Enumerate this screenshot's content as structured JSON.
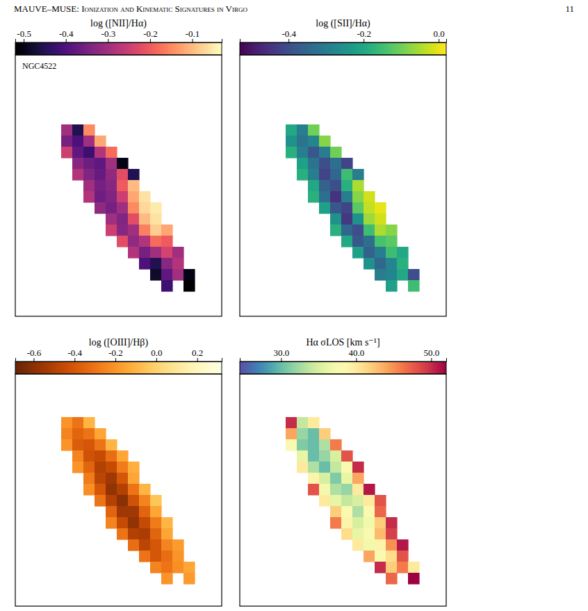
{
  "page_header": {
    "title": "MAUVE–MUSE: Ionization and Kinematic Signatures in Virgo",
    "page_number": 11
  },
  "chart_data": [
    {
      "type": "heatmap",
      "title": "log ([NII]/Hα)",
      "annotation": "NGC4522",
      "color": "magma",
      "colorbar_range": [
        -0.52,
        -0.03
      ],
      "colorbar_ticks": [
        -0.5,
        -0.4,
        -0.3,
        -0.2,
        -0.1
      ],
      "cells": [
        [
          -0.3,
          -0.45,
          -0.15,
          null,
          null,
          null,
          null,
          null,
          null,
          null,
          null,
          null
        ],
        [
          -0.35,
          -0.4,
          -0.3,
          -0.12,
          null,
          null,
          null,
          null,
          null,
          null,
          null,
          null
        ],
        [
          -0.25,
          -0.38,
          -0.42,
          -0.28,
          -0.18,
          null,
          null,
          null,
          null,
          null,
          null,
          null
        ],
        [
          null,
          -0.33,
          -0.36,
          -0.38,
          -0.3,
          -0.5,
          null,
          null,
          null,
          null,
          null,
          null
        ],
        [
          null,
          -0.28,
          -0.34,
          -0.37,
          -0.32,
          -0.22,
          -0.45,
          null,
          null,
          null,
          null,
          null
        ],
        [
          null,
          null,
          -0.3,
          -0.35,
          -0.33,
          -0.2,
          -0.1,
          null,
          null,
          null,
          null,
          null
        ],
        [
          null,
          null,
          -0.28,
          -0.36,
          -0.34,
          -0.25,
          -0.12,
          -0.06,
          null,
          null,
          null,
          null
        ],
        [
          null,
          null,
          null,
          -0.32,
          -0.35,
          -0.3,
          -0.15,
          -0.07,
          -0.05,
          null,
          null,
          null
        ],
        [
          null,
          null,
          null,
          null,
          -0.3,
          -0.34,
          -0.22,
          -0.1,
          -0.06,
          null,
          null,
          null
        ],
        [
          null,
          null,
          null,
          null,
          -0.25,
          -0.33,
          -0.3,
          -0.16,
          -0.08,
          -0.12,
          null,
          null
        ],
        [
          null,
          null,
          null,
          null,
          null,
          -0.22,
          -0.32,
          -0.28,
          -0.18,
          -0.2,
          null,
          null
        ],
        [
          null,
          null,
          null,
          null,
          null,
          null,
          -0.28,
          -0.35,
          -0.3,
          -0.24,
          -0.3,
          null
        ],
        [
          null,
          null,
          null,
          null,
          null,
          null,
          null,
          -0.4,
          -0.45,
          -0.33,
          -0.28,
          null
        ],
        [
          null,
          null,
          null,
          null,
          null,
          null,
          null,
          null,
          -0.48,
          -0.38,
          -0.3,
          -0.5
        ],
        [
          null,
          null,
          null,
          null,
          null,
          null,
          null,
          null,
          null,
          -0.42,
          null,
          -0.52
        ]
      ]
    },
    {
      "type": "heatmap",
      "title": "log ([SII]/Hα)",
      "color": "viridis",
      "colorbar_range": [
        -0.53,
        0.02
      ],
      "colorbar_ticks": [
        -0.4,
        -0.2,
        {
          "value": 0,
          "label": "0.0"
        }
      ],
      "cells": [
        [
          -0.2,
          -0.3,
          -0.1,
          null,
          null,
          null,
          null,
          null,
          null,
          null,
          null,
          null
        ],
        [
          -0.25,
          -0.32,
          -0.28,
          -0.08,
          null,
          null,
          null,
          null,
          null,
          null,
          null,
          null
        ],
        [
          -0.18,
          -0.3,
          -0.38,
          -0.3,
          -0.1,
          null,
          null,
          null,
          null,
          null,
          null,
          null
        ],
        [
          null,
          -0.22,
          -0.32,
          -0.4,
          -0.33,
          -0.42,
          null,
          null,
          null,
          null,
          null,
          null
        ],
        [
          null,
          -0.18,
          -0.3,
          -0.42,
          -0.35,
          -0.15,
          -0.3,
          null,
          null,
          null,
          null,
          null
        ],
        [
          null,
          null,
          -0.2,
          -0.36,
          -0.4,
          -0.18,
          -0.05,
          null,
          null,
          null,
          null,
          null
        ],
        [
          null,
          null,
          -0.18,
          -0.33,
          -0.45,
          -0.3,
          -0.08,
          -0.02,
          null,
          null,
          null,
          null
        ],
        [
          null,
          null,
          null,
          -0.22,
          -0.38,
          -0.42,
          -0.12,
          -0.03,
          0.0,
          null,
          null,
          null
        ],
        [
          null,
          null,
          null,
          null,
          -0.25,
          -0.44,
          -0.25,
          -0.06,
          -0.02,
          null,
          null,
          null
        ],
        [
          null,
          null,
          null,
          null,
          -0.18,
          -0.35,
          -0.4,
          -0.15,
          -0.05,
          -0.08,
          null,
          null
        ],
        [
          null,
          null,
          null,
          null,
          null,
          -0.2,
          -0.38,
          -0.33,
          -0.14,
          -0.12,
          null,
          null
        ],
        [
          null,
          null,
          null,
          null,
          null,
          null,
          -0.22,
          -0.36,
          -0.3,
          -0.15,
          -0.2,
          null
        ],
        [
          null,
          null,
          null,
          null,
          null,
          null,
          null,
          -0.25,
          -0.35,
          -0.28,
          -0.18,
          null
        ],
        [
          null,
          null,
          null,
          null,
          null,
          null,
          null,
          null,
          -0.3,
          -0.28,
          -0.2,
          -0.4
        ],
        [
          null,
          null,
          null,
          null,
          null,
          null,
          null,
          null,
          null,
          -0.22,
          null,
          -0.15
        ]
      ]
    },
    {
      "type": "heatmap",
      "title": "log ([OIII]/Hβ)",
      "color": "YlOrBr_r",
      "colorbar_range": [
        -0.69,
        0.32
      ],
      "colorbar_ticks": [
        -0.6,
        -0.4,
        -0.2,
        {
          "value": 0,
          "label": "0.0"
        },
        0.2
      ],
      "cells": [
        [
          -0.2,
          -0.3,
          -0.1,
          null,
          null,
          null,
          null,
          null,
          null,
          null,
          null,
          null
        ],
        [
          -0.25,
          -0.35,
          -0.3,
          -0.15,
          null,
          null,
          null,
          null,
          null,
          null,
          null,
          null
        ],
        [
          -0.2,
          -0.38,
          -0.4,
          -0.3,
          -0.1,
          null,
          null,
          null,
          null,
          null,
          null,
          null
        ],
        [
          null,
          -0.25,
          -0.42,
          -0.45,
          -0.32,
          -0.15,
          null,
          null,
          null,
          null,
          null,
          null
        ],
        [
          null,
          -0.2,
          -0.35,
          -0.5,
          -0.45,
          -0.28,
          -0.12,
          null,
          null,
          null,
          null,
          null
        ],
        [
          null,
          null,
          -0.28,
          -0.48,
          -0.55,
          -0.4,
          -0.15,
          null,
          null,
          null,
          null,
          null
        ],
        [
          null,
          null,
          -0.22,
          -0.4,
          -0.58,
          -0.5,
          -0.3,
          -0.1,
          null,
          null,
          null,
          null
        ],
        [
          null,
          null,
          null,
          -0.3,
          -0.5,
          -0.6,
          -0.42,
          -0.25,
          -0.05,
          null,
          null,
          null
        ],
        [
          null,
          null,
          null,
          null,
          -0.35,
          -0.55,
          -0.55,
          -0.35,
          -0.15,
          null,
          null,
          null
        ],
        [
          null,
          null,
          null,
          null,
          -0.25,
          -0.45,
          -0.58,
          -0.45,
          -0.28,
          -0.1,
          null,
          null
        ],
        [
          null,
          null,
          null,
          null,
          null,
          -0.3,
          -0.5,
          -0.52,
          -0.35,
          -0.15,
          null,
          null
        ],
        [
          null,
          null,
          null,
          null,
          null,
          null,
          -0.32,
          -0.48,
          -0.4,
          -0.25,
          -0.18,
          null
        ],
        [
          null,
          null,
          null,
          null,
          null,
          null,
          null,
          -0.3,
          -0.4,
          -0.32,
          -0.2,
          null
        ],
        [
          null,
          null,
          null,
          null,
          null,
          null,
          null,
          null,
          -0.25,
          -0.3,
          -0.22,
          -0.15
        ],
        [
          null,
          null,
          null,
          null,
          null,
          null,
          null,
          null,
          null,
          -0.2,
          null,
          -0.18
        ]
      ]
    },
    {
      "type": "heatmap",
      "title": "Hα σLOS [km s⁻¹]",
      "color": "Spectral_r",
      "colorbar_range": [
        24.5,
        52
      ],
      "colorbar_ticks": [
        {
          "value": 30,
          "label": "30.0"
        },
        {
          "value": 40,
          "label": "40.0"
        },
        {
          "value": 50,
          "label": "50.0"
        }
      ],
      "cells": [
        [
          50,
          34,
          40,
          null,
          null,
          null,
          null,
          null,
          null,
          null,
          null,
          null
        ],
        [
          44,
          32,
          30,
          42,
          null,
          null,
          null,
          null,
          null,
          null,
          null,
          null
        ],
        [
          38,
          31,
          30,
          33,
          46,
          null,
          null,
          null,
          null,
          null,
          null,
          null
        ],
        [
          null,
          36,
          30,
          32,
          35,
          48,
          null,
          null,
          null,
          null,
          null,
          null
        ],
        [
          null,
          40,
          33,
          30,
          34,
          38,
          50,
          null,
          null,
          null,
          null,
          null
        ],
        [
          null,
          null,
          39,
          35,
          31,
          36,
          44,
          null,
          null,
          null,
          null,
          null
        ],
        [
          null,
          null,
          48,
          37,
          33,
          32,
          40,
          51,
          null,
          null,
          null,
          null
        ],
        [
          null,
          null,
          null,
          40,
          36,
          34,
          35,
          40,
          48,
          null,
          null,
          null
        ],
        [
          null,
          null,
          null,
          null,
          42,
          38,
          33,
          38,
          47,
          null,
          null,
          null
        ],
        [
          null,
          null,
          null,
          null,
          46,
          39,
          35,
          37,
          42,
          50,
          null,
          null
        ],
        [
          null,
          null,
          null,
          null,
          null,
          41,
          36,
          38,
          43,
          49,
          null,
          null
        ],
        [
          null,
          null,
          null,
          null,
          null,
          null,
          40,
          37,
          39,
          45,
          51,
          null
        ],
        [
          null,
          null,
          null,
          null,
          null,
          null,
          null,
          44,
          38,
          41,
          48,
          null
        ],
        [
          null,
          null,
          null,
          null,
          null,
          null,
          null,
          null,
          50,
          42,
          46,
          40
        ],
        [
          null,
          null,
          null,
          null,
          null,
          null,
          null,
          null,
          null,
          47,
          null,
          52
        ]
      ]
    }
  ]
}
